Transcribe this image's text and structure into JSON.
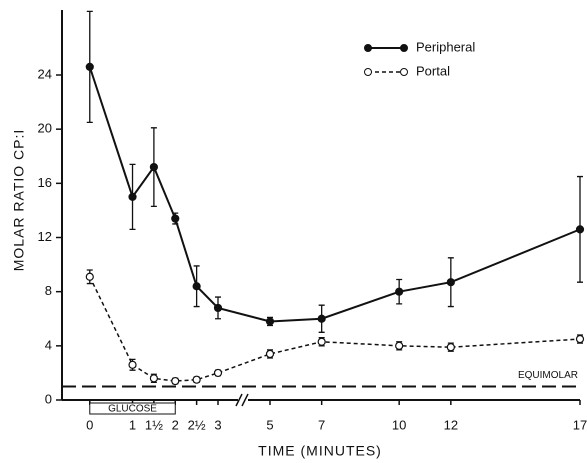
{
  "chart_data": {
    "type": "line",
    "y_label": "MOLAR RATIO CP:I",
    "x_label": "TIME (MINUTES)",
    "xlim": [
      -0.65,
      17
    ],
    "xbreak": [
      3,
      5
    ],
    "xticks": [
      0,
      1,
      {
        "value": 1.5,
        "label": "1½"
      },
      2,
      {
        "value": 2.5,
        "label": "2½"
      },
      3,
      5,
      7,
      10,
      12,
      17
    ],
    "ylim": [
      0,
      28.8
    ],
    "yticks": [
      0,
      4,
      8,
      12,
      16,
      20,
      24
    ],
    "x": [
      0,
      1,
      1.5,
      2,
      2.5,
      3,
      5,
      7,
      10,
      12,
      17
    ],
    "series": [
      {
        "name": "Peripheral",
        "color": "#111111",
        "marker": "filled",
        "dash": false,
        "values": [
          24.6,
          15.0,
          17.2,
          13.4,
          8.4,
          6.8,
          5.8,
          6.0,
          8.0,
          8.7,
          12.6
        ],
        "errors": [
          4.1,
          2.4,
          2.9,
          0.4,
          1.5,
          0.8,
          0.3,
          1.0,
          0.9,
          1.8,
          3.9
        ]
      },
      {
        "name": "Portal",
        "color": "#111111",
        "marker": "open",
        "dash": true,
        "values": [
          9.1,
          2.6,
          1.6,
          1.4,
          1.5,
          2.0,
          3.4,
          4.3,
          4.0,
          3.9,
          4.5
        ],
        "errors": [
          0.5,
          0.4,
          0.3,
          0.2,
          0.2,
          0.2,
          0.3,
          0.3,
          0.3,
          0.3,
          0.3
        ]
      }
    ],
    "reference_line": {
      "text": "EQUIMOLAR",
      "y": 1
    },
    "interval_box": {
      "text": "GLUCOSE",
      "x": [
        0,
        2
      ]
    },
    "legend": "upper right"
  }
}
